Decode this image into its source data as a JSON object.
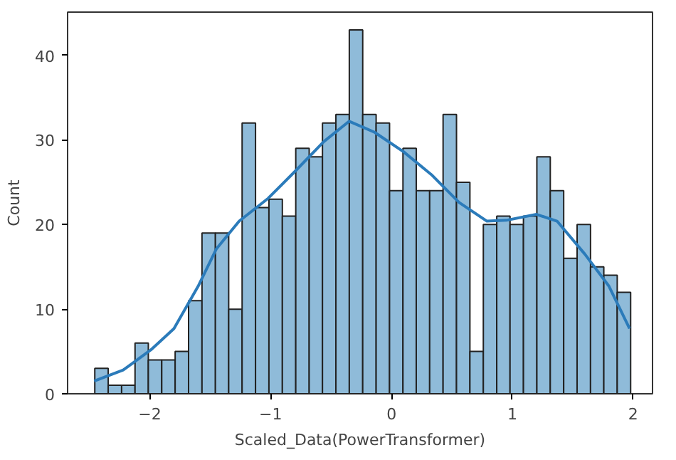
{
  "chart_data": {
    "type": "histogram",
    "xlabel": "Scaled_Data(PowerTransformer)",
    "ylabel": "Count",
    "xlim": [
      -2.68,
      2.16
    ],
    "ylim": [
      0,
      45.1
    ],
    "xticks": [
      {
        "value": -2,
        "label": "−2"
      },
      {
        "value": -1,
        "label": "−1"
      },
      0,
      1,
      2
    ],
    "yticks": [
      0,
      10,
      20,
      30,
      40
    ],
    "series": [
      {
        "color": "#8fbbd9",
        "bins": [
          -2.455,
          -2.344,
          -2.233,
          -2.122,
          -2.012,
          -1.901,
          -1.79,
          -1.679,
          -1.568,
          -1.457,
          -1.347,
          -1.236,
          -1.125,
          -1.014,
          -0.903,
          -0.792,
          -0.681,
          -0.571,
          -0.46,
          -0.349,
          -0.238,
          -0.127,
          -0.016,
          0.095,
          0.205,
          0.316,
          0.427,
          0.538,
          0.649,
          0.76,
          0.871,
          0.981,
          1.092,
          1.203,
          1.314,
          1.425,
          1.536,
          1.647,
          1.757,
          1.868,
          1.979
        ],
        "values": [
          3,
          1,
          1,
          6,
          4,
          4,
          5,
          11,
          19,
          19,
          10,
          32,
          22,
          23,
          21,
          29,
          28,
          32,
          33,
          43,
          33,
          32,
          24,
          29,
          24,
          24,
          33,
          25,
          5,
          20,
          21,
          20,
          21,
          28,
          24,
          16,
          20,
          15,
          14,
          12
        ]
      },
      {
        "type": "line",
        "color": "#2b7bba",
        "x": [
          -2.46,
          -2.22,
          -1.99,
          -1.8,
          -1.6,
          -1.45,
          -1.26,
          -1.02,
          -0.79,
          -0.56,
          -0.35,
          -0.14,
          0.1,
          0.33,
          0.56,
          0.79,
          0.95,
          1.2,
          1.37,
          1.6,
          1.8,
          1.97
        ],
        "values": [
          1.5,
          2.8,
          5.2,
          7.7,
          12.7,
          17.1,
          20.4,
          23.1,
          26.4,
          29.8,
          32.2,
          30.9,
          28.6,
          25.9,
          22.6,
          20.4,
          20.5,
          21.2,
          20.4,
          16.5,
          12.7,
          7.7
        ]
      }
    ]
  }
}
